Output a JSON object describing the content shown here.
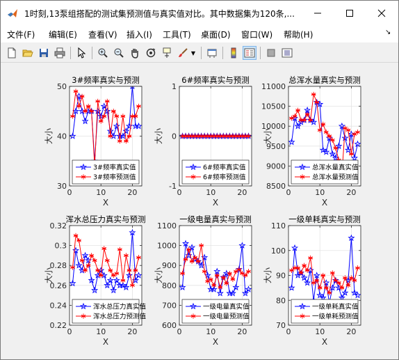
{
  "window": {
    "title": "1时刻,13泵组搭配的测试集预测值与真实值对比。其中数据集为120条,...",
    "minimize_icon": "minimize-icon",
    "maximize_icon": "maximize-icon",
    "close_icon": "close-icon"
  },
  "menu": {
    "items": [
      "文件(F)",
      "编辑(E)",
      "查看(V)",
      "插入(I)",
      "工具(T)",
      "桌面(D)",
      "窗口(W)",
      "帮助(H)"
    ],
    "dock_arrow": "↘"
  },
  "toolbar": {
    "icons": [
      "new-figure-icon",
      "open-icon",
      "save-icon",
      "print-icon",
      "pointer-icon",
      "zoom-in-icon",
      "zoom-out-icon",
      "pan-icon",
      "rotate-icon",
      "data-cursor-icon",
      "brush-icon",
      "link-icon",
      "colorbar-icon",
      "legend-icon",
      "hide-plot-tools-icon",
      "show-plot-tools-icon"
    ]
  },
  "chart_data": [
    {
      "type": "line",
      "title": "3#频率真实与预测",
      "xlabel": "X",
      "ylabel": "大小",
      "xlim": [
        0,
        23
      ],
      "ylim": [
        30,
        50
      ],
      "xticks": [
        0,
        10,
        20
      ],
      "yticks": [
        30,
        40,
        50
      ],
      "grid": true,
      "legend_position": "bottom",
      "x": [
        1,
        2,
        3,
        4,
        5,
        6,
        7,
        8,
        9,
        10,
        11,
        12,
        13,
        14,
        15,
        16,
        17,
        18,
        19,
        20,
        21,
        22
      ],
      "series": [
        {
          "name": "3#频率真实值",
          "color": "#0000ff",
          "marker": "star",
          "values": [
            40,
            45,
            48,
            45,
            43,
            45,
            45,
            35,
            45,
            44,
            46,
            45,
            41,
            40,
            42,
            40,
            40,
            41,
            42,
            50,
            42,
            42
          ]
        },
        {
          "name": "3#频率预测值",
          "color": "#ff0000",
          "marker": "asterisk",
          "values": [
            44,
            49,
            46,
            48,
            45,
            46,
            45,
            34,
            47,
            43,
            44,
            47,
            40,
            45,
            44,
            39,
            44,
            39,
            40,
            44,
            44,
            46
          ]
        }
      ]
    },
    {
      "type": "line",
      "title": "6#频率真实与预测",
      "xlabel": "X",
      "ylabel": "大小",
      "xlim": [
        0,
        23
      ],
      "ylim": [
        -1,
        1
      ],
      "xticks": [
        0,
        10,
        20
      ],
      "yticks": [
        -1,
        0,
        1
      ],
      "grid": true,
      "legend_position": "bottom",
      "x": [
        1,
        2,
        3,
        4,
        5,
        6,
        7,
        8,
        9,
        10,
        11,
        12,
        13,
        14,
        15,
        16,
        17,
        18,
        19,
        20,
        21,
        22
      ],
      "series": [
        {
          "name": "6#频率真实值",
          "color": "#0000ff",
          "marker": "star",
          "values": [
            0,
            0,
            0,
            0,
            0,
            0,
            0,
            0,
            0,
            0,
            0,
            0,
            0,
            0,
            0,
            0,
            0,
            0,
            0,
            0,
            0,
            0
          ]
        },
        {
          "name": "6#频率预测值",
          "color": "#ff0000",
          "marker": "asterisk",
          "values": [
            0,
            0,
            0,
            0,
            0,
            0,
            0,
            0,
            0,
            0,
            0,
            0,
            0,
            0,
            0,
            0,
            0,
            0,
            0,
            0,
            0,
            0
          ]
        }
      ]
    },
    {
      "type": "line",
      "title": "总浑水量真实与预测",
      "xlabel": "X",
      "ylabel": "大小",
      "xlim": [
        0,
        23
      ],
      "ylim": [
        8500,
        11000
      ],
      "xticks": [
        0,
        10,
        20
      ],
      "yticks": [
        8500,
        9000,
        9500,
        10000,
        10500,
        11000
      ],
      "grid": true,
      "legend_position": "bottom",
      "x": [
        1,
        2,
        3,
        4,
        5,
        6,
        7,
        8,
        9,
        10,
        11,
        12,
        13,
        14,
        15,
        16,
        17,
        18,
        19,
        20,
        21,
        22
      ],
      "series": [
        {
          "name": "总浑水量真实值",
          "color": "#0000ff",
          "marker": "star",
          "values": [
            9600,
            10200,
            10000,
            10100,
            10150,
            10400,
            10150,
            10100,
            10600,
            10550,
            9400,
            9350,
            9700,
            9300,
            9200,
            9500,
            10000,
            9700,
            9400,
            9800,
            9200,
            9550
          ]
        },
        {
          "name": "总浑水量预测值",
          "color": "#ff0000",
          "marker": "asterisk",
          "values": [
            10200,
            10250,
            10400,
            10150,
            10150,
            10300,
            10150,
            10800,
            10600,
            9900,
            10050,
            9850,
            9750,
            9650,
            9450,
            9150,
            8800,
            9950,
            9900,
            9300,
            9800,
            9850
          ]
        }
      ]
    },
    {
      "type": "line",
      "title": "浑水总压力真实与预测",
      "xlabel": "X",
      "ylabel": "大小",
      "xlim": [
        0,
        23
      ],
      "ylim": [
        0.22,
        0.32
      ],
      "xticks": [
        0,
        10,
        20
      ],
      "yticks": [
        0.22,
        0.24,
        0.26,
        0.28,
        0.3,
        0.32
      ],
      "grid": true,
      "legend_position": "bottom",
      "x": [
        1,
        2,
        3,
        4,
        5,
        6,
        7,
        8,
        9,
        10,
        11,
        12,
        13,
        14,
        15,
        16,
        17,
        18,
        19,
        20,
        21,
        22
      ],
      "series": [
        {
          "name": "浑水总压力真实值",
          "color": "#0000ff",
          "marker": "star",
          "values": [
            0.262,
            0.295,
            0.28,
            0.275,
            0.29,
            0.285,
            0.265,
            0.255,
            0.27,
            0.275,
            0.27,
            0.26,
            0.265,
            0.255,
            0.265,
            0.26,
            0.26,
            0.258,
            0.27,
            0.313,
            0.265,
            0.27
          ]
        },
        {
          "name": "浑水总压力预测值",
          "color": "#ff0000",
          "marker": "asterisk",
          "values": [
            0.278,
            0.31,
            0.305,
            0.285,
            0.275,
            0.28,
            0.29,
            0.285,
            0.275,
            0.27,
            0.297,
            0.285,
            0.275,
            0.27,
            0.272,
            0.296,
            0.265,
            0.29,
            0.275,
            0.26,
            0.275,
            0.288
          ]
        }
      ]
    },
    {
      "type": "line",
      "title": "一级电量真实与预测",
      "xlabel": "X",
      "ylabel": "大小",
      "xlim": [
        0,
        23
      ],
      "ylim": [
        600,
        1100
      ],
      "xticks": [
        0,
        10,
        20
      ],
      "yticks": [
        600,
        700,
        800,
        900,
        1000,
        1100
      ],
      "grid": true,
      "legend_position": "bottom",
      "x": [
        1,
        2,
        3,
        4,
        5,
        6,
        7,
        8,
        9,
        10,
        11,
        12,
        13,
        14,
        15,
        16,
        17,
        18,
        19,
        20,
        21,
        22
      ],
      "series": [
        {
          "name": "一级电量真实值",
          "color": "#0000ff",
          "marker": "star",
          "values": [
            790,
            1010,
            950,
            990,
            930,
            920,
            900,
            940,
            850,
            780,
            780,
            870,
            760,
            840,
            860,
            760,
            760,
            790,
            880,
            1000,
            760,
            780
          ]
        },
        {
          "name": "一级电量预测值",
          "color": "#ff0000",
          "marker": "asterisk",
          "values": [
            860,
            930,
            980,
            920,
            940,
            920,
            1000,
            870,
            820,
            830,
            800,
            850,
            790,
            840,
            810,
            860,
            830,
            870,
            880,
            860,
            850,
            870
          ]
        }
      ]
    },
    {
      "type": "line",
      "title": "一级单耗真实与预测",
      "xlabel": "X",
      "ylabel": "大小",
      "xlim": [
        0,
        23
      ],
      "ylim": [
        70,
        110
      ],
      "xticks": [
        0,
        10,
        20
      ],
      "yticks": [
        70,
        80,
        90,
        100,
        110
      ],
      "grid": true,
      "legend_position": "bottom",
      "x": [
        1,
        2,
        3,
        4,
        5,
        6,
        7,
        8,
        9,
        10,
        11,
        12,
        13,
        14,
        15,
        16,
        17,
        18,
        19,
        20,
        21,
        22
      ],
      "series": [
        {
          "name": "一级单耗真实值",
          "color": "#0000ff",
          "marker": "star",
          "values": [
            85,
            101,
            90,
            91,
            89,
            87,
            92,
            80,
            90,
            82,
            81,
            87,
            79,
            85,
            88,
            85,
            81,
            83,
            88,
            105,
            83,
            82
          ]
        },
        {
          "name": "一级单耗预测值",
          "color": "#ff0000",
          "marker": "asterisk",
          "values": [
            92,
            93,
            93,
            91,
            94,
            92,
            97,
            87,
            88,
            85,
            90,
            85,
            83,
            91,
            88,
            87,
            85,
            89,
            86,
            89,
            88,
            93
          ]
        }
      ]
    }
  ]
}
